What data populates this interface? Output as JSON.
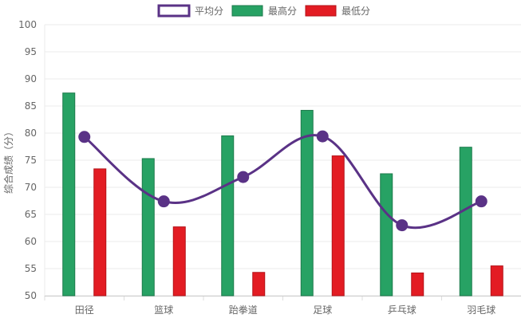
{
  "chart_data": {
    "type": "bar",
    "title": "",
    "xlabel": "",
    "ylabel": "综合成绩（分）",
    "ylim": [
      50,
      100
    ],
    "ytick_step": 5,
    "grid": true,
    "legend_position": "top-center",
    "categories": [
      "田径",
      "篮球",
      "跆拳道",
      "足球",
      "乒乓球",
      "羽毛球"
    ],
    "series": [
      {
        "name": "平均分",
        "kind": "line",
        "smooth": true,
        "color": "#5a3286",
        "values": [
          79.3,
          67.4,
          71.9,
          79.4,
          63.0,
          67.4
        ]
      },
      {
        "name": "最高分",
        "kind": "bar",
        "color": "#27a264",
        "border": "#1d7a4b",
        "values": [
          87.4,
          75.3,
          79.5,
          84.2,
          72.5,
          77.4
        ]
      },
      {
        "name": "最低分",
        "kind": "bar",
        "color": "#e31c23",
        "border": "#b31218",
        "values": [
          73.4,
          62.7,
          54.3,
          75.8,
          54.2,
          55.5
        ]
      }
    ]
  }
}
